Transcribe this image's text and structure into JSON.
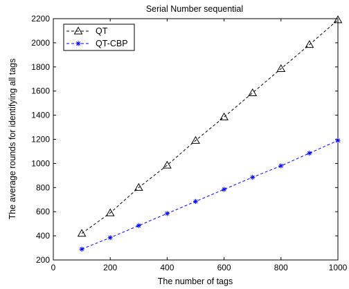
{
  "chart_data": {
    "type": "line",
    "title": "Serial Number sequential",
    "xlabel": "The number of tags",
    "ylabel": "The average rounds for identifying all tags",
    "xlim": [
      0,
      1000
    ],
    "ylim": [
      200,
      2200
    ],
    "xticks": [
      0,
      200,
      400,
      600,
      800,
      1000
    ],
    "yticks": [
      200,
      400,
      600,
      800,
      1000,
      1200,
      1400,
      1600,
      1800,
      2000,
      2200
    ],
    "grid": false,
    "legend_position": "top-left",
    "x": [
      100,
      200,
      300,
      400,
      500,
      600,
      700,
      800,
      900,
      1000
    ],
    "series": [
      {
        "name": "QT",
        "values": [
          420,
          590,
          800,
          985,
          1190,
          1385,
          1585,
          1785,
          1985,
          2190
        ],
        "color": "#000000",
        "marker": "triangle-open",
        "line_style": "dashed"
      },
      {
        "name": "QT-CBP",
        "values": [
          290,
          385,
          485,
          585,
          685,
          785,
          885,
          980,
          1085,
          1190
        ],
        "color": "#0000ff",
        "marker": "asterisk",
        "line_style": "dashed"
      }
    ]
  }
}
